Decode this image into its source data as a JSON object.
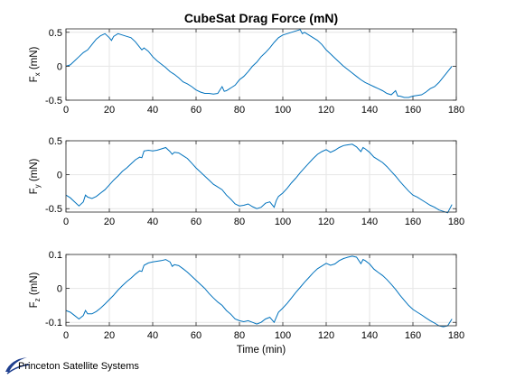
{
  "figure": {
    "title": "CubeSat Drag Force (mN)",
    "xlabel": "Time (min)",
    "logo_text": "Princeton Satellite Systems"
  },
  "colors": {
    "line": "#0072BD",
    "grid": "#e6e6e6",
    "axis": "#262626"
  },
  "chart_data": [
    {
      "type": "line",
      "title": "CubeSat Drag Force (mN)",
      "ylabel_main": "F",
      "ylabel_sub": "x",
      "ylabel_unit": "(mN)",
      "xlabel": "",
      "xlim": [
        0,
        180
      ],
      "ylim": [
        -0.5,
        0.55
      ],
      "xticks": [
        0,
        20,
        40,
        60,
        80,
        100,
        120,
        140,
        160,
        180
      ],
      "yticks": [
        0.5,
        0,
        -0.5
      ],
      "ytick_labels": [
        "0.5",
        "0",
        "-0.5"
      ],
      "grid": true,
      "x": [
        0,
        2,
        4,
        6,
        8,
        10,
        12,
        14,
        16,
        18,
        20,
        21,
        22,
        24,
        26,
        28,
        30,
        32,
        34,
        35,
        36,
        38,
        40,
        42,
        44,
        46,
        48,
        50,
        52,
        54,
        56,
        58,
        60,
        62,
        64,
        66,
        68,
        70,
        72,
        73,
        74,
        76,
        78,
        80,
        82,
        84,
        86,
        88,
        90,
        92,
        94,
        96,
        98,
        100,
        102,
        104,
        106,
        108,
        109,
        110,
        112,
        114,
        116,
        118,
        120,
        122,
        124,
        126,
        128,
        130,
        132,
        134,
        136,
        138,
        140,
        142,
        144,
        146,
        148,
        150,
        152,
        153,
        154,
        156,
        158,
        160,
        162,
        164,
        166,
        168,
        170,
        172,
        174,
        176,
        178
      ],
      "y": [
        0.0,
        0.02,
        0.08,
        0.14,
        0.2,
        0.24,
        0.32,
        0.4,
        0.45,
        0.48,
        0.42,
        0.38,
        0.44,
        0.48,
        0.46,
        0.44,
        0.42,
        0.36,
        0.28,
        0.24,
        0.27,
        0.22,
        0.14,
        0.08,
        0.03,
        -0.02,
        -0.08,
        -0.12,
        -0.17,
        -0.23,
        -0.26,
        -0.3,
        -0.35,
        -0.38,
        -0.4,
        -0.4,
        -0.41,
        -0.4,
        -0.3,
        -0.37,
        -0.36,
        -0.32,
        -0.28,
        -0.2,
        -0.15,
        -0.08,
        0.0,
        0.06,
        0.14,
        0.2,
        0.27,
        0.35,
        0.42,
        0.46,
        0.48,
        0.5,
        0.52,
        0.54,
        0.48,
        0.5,
        0.46,
        0.42,
        0.38,
        0.32,
        0.24,
        0.18,
        0.12,
        0.06,
        0.0,
        -0.05,
        -0.1,
        -0.15,
        -0.2,
        -0.24,
        -0.27,
        -0.3,
        -0.33,
        -0.36,
        -0.4,
        -0.42,
        -0.36,
        -0.44,
        -0.44,
        -0.46,
        -0.46,
        -0.44,
        -0.43,
        -0.42,
        -0.38,
        -0.33,
        -0.3,
        -0.24,
        -0.16,
        -0.08,
        0.0
      ]
    },
    {
      "type": "line",
      "ylabel_main": "F",
      "ylabel_sub": "y",
      "ylabel_unit": "(mN)",
      "xlabel": "",
      "xlim": [
        0,
        180
      ],
      "ylim": [
        -0.55,
        0.5
      ],
      "xticks": [
        0,
        20,
        40,
        60,
        80,
        100,
        120,
        140,
        160,
        180
      ],
      "yticks": [
        0.5,
        0,
        -0.5
      ],
      "ytick_labels": [
        "0.5",
        "0",
        "-0.5"
      ],
      "grid": true,
      "x": [
        0,
        2,
        4,
        6,
        8,
        9,
        10,
        12,
        14,
        16,
        18,
        20,
        22,
        24,
        26,
        28,
        30,
        32,
        34,
        35,
        36,
        38,
        40,
        42,
        44,
        46,
        48,
        49,
        50,
        52,
        54,
        56,
        58,
        60,
        62,
        64,
        66,
        68,
        70,
        72,
        74,
        76,
        78,
        80,
        82,
        84,
        86,
        88,
        90,
        92,
        94,
        96,
        97,
        98,
        100,
        102,
        104,
        106,
        108,
        110,
        112,
        114,
        116,
        118,
        120,
        122,
        124,
        126,
        128,
        130,
        132,
        134,
        136,
        137,
        138,
        140,
        142,
        144,
        146,
        148,
        150,
        152,
        154,
        156,
        158,
        160,
        162,
        164,
        166,
        168,
        170,
        172,
        174,
        176,
        178
      ],
      "y": [
        -0.3,
        -0.34,
        -0.4,
        -0.46,
        -0.4,
        -0.3,
        -0.33,
        -0.35,
        -0.32,
        -0.27,
        -0.22,
        -0.15,
        -0.08,
        -0.02,
        0.05,
        0.1,
        0.16,
        0.22,
        0.26,
        0.25,
        0.35,
        0.36,
        0.35,
        0.36,
        0.38,
        0.4,
        0.34,
        0.3,
        0.33,
        0.32,
        0.28,
        0.24,
        0.17,
        0.1,
        0.04,
        -0.02,
        -0.08,
        -0.14,
        -0.18,
        -0.22,
        -0.3,
        -0.36,
        -0.43,
        -0.46,
        -0.45,
        -0.43,
        -0.47,
        -0.5,
        -0.48,
        -0.42,
        -0.4,
        -0.48,
        -0.38,
        -0.32,
        -0.27,
        -0.2,
        -0.12,
        -0.05,
        0.03,
        0.1,
        0.17,
        0.24,
        0.3,
        0.34,
        0.37,
        0.33,
        0.36,
        0.4,
        0.43,
        0.44,
        0.45,
        0.41,
        0.34,
        0.4,
        0.38,
        0.33,
        0.26,
        0.22,
        0.18,
        0.12,
        0.05,
        -0.02,
        -0.1,
        -0.17,
        -0.24,
        -0.3,
        -0.33,
        -0.37,
        -0.41,
        -0.45,
        -0.48,
        -0.52,
        -0.54,
        -0.56,
        -0.44
      ]
    },
    {
      "type": "line",
      "ylabel_main": "F",
      "ylabel_sub": "z",
      "ylabel_unit": "(mN)",
      "xlabel": "Time (min)",
      "xlim": [
        0,
        180
      ],
      "ylim": [
        -0.11,
        0.1
      ],
      "xticks": [
        0,
        20,
        40,
        60,
        80,
        100,
        120,
        140,
        160,
        180
      ],
      "yticks": [
        0.1,
        0,
        -0.1
      ],
      "ytick_labels": [
        "0.1",
        "0",
        "-0.1"
      ],
      "grid": true,
      "x": [
        0,
        2,
        4,
        6,
        8,
        9,
        10,
        12,
        14,
        16,
        18,
        20,
        22,
        24,
        26,
        28,
        30,
        32,
        34,
        35,
        36,
        38,
        40,
        42,
        44,
        46,
        48,
        49,
        50,
        52,
        54,
        56,
        58,
        60,
        62,
        64,
        66,
        68,
        70,
        72,
        74,
        76,
        78,
        80,
        82,
        84,
        86,
        88,
        90,
        92,
        94,
        96,
        97,
        98,
        100,
        102,
        104,
        106,
        108,
        110,
        112,
        114,
        116,
        118,
        120,
        122,
        124,
        126,
        128,
        130,
        132,
        134,
        136,
        137,
        138,
        140,
        142,
        144,
        146,
        148,
        150,
        152,
        154,
        156,
        158,
        160,
        162,
        164,
        166,
        168,
        170,
        172,
        174,
        176,
        178
      ],
      "y": [
        -0.065,
        -0.07,
        -0.08,
        -0.09,
        -0.08,
        -0.065,
        -0.075,
        -0.075,
        -0.068,
        -0.058,
        -0.046,
        -0.033,
        -0.02,
        -0.005,
        0.008,
        0.02,
        0.03,
        0.042,
        0.052,
        0.05,
        0.068,
        0.075,
        0.078,
        0.08,
        0.082,
        0.085,
        0.078,
        0.065,
        0.07,
        0.067,
        0.058,
        0.048,
        0.036,
        0.024,
        0.012,
        0.0,
        -0.015,
        -0.028,
        -0.04,
        -0.05,
        -0.065,
        -0.076,
        -0.09,
        -0.095,
        -0.098,
        -0.095,
        -0.1,
        -0.105,
        -0.1,
        -0.09,
        -0.085,
        -0.1,
        -0.085,
        -0.07,
        -0.058,
        -0.044,
        -0.028,
        -0.012,
        0.003,
        0.018,
        0.032,
        0.046,
        0.058,
        0.066,
        0.074,
        0.068,
        0.072,
        0.082,
        0.088,
        0.092,
        0.095,
        0.092,
        0.073,
        0.085,
        0.082,
        0.072,
        0.057,
        0.047,
        0.038,
        0.026,
        0.012,
        -0.003,
        -0.02,
        -0.035,
        -0.05,
        -0.062,
        -0.07,
        -0.078,
        -0.087,
        -0.095,
        -0.102,
        -0.11,
        -0.113,
        -0.11,
        -0.09
      ]
    }
  ]
}
